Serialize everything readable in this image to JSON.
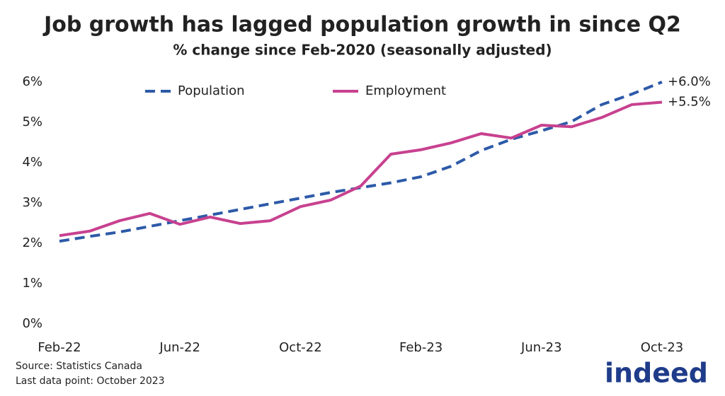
{
  "chart_data": {
    "type": "line",
    "title": "Job growth has lagged population growth in since Q2",
    "subtitle": "% change since Feb-2020 (seasonally adjusted)",
    "categories": [
      "Feb-22",
      null,
      null,
      null,
      "Jun-22",
      null,
      null,
      null,
      "Oct-22",
      null,
      null,
      null,
      "Feb-23",
      null,
      null,
      null,
      "Jun-23",
      null,
      null,
      null,
      "Oct-23"
    ],
    "series": [
      {
        "name": "Population",
        "color": "#2d5aa8",
        "dashed": true,
        "values": [
          2.05,
          2.17,
          2.28,
          2.42,
          2.56,
          2.7,
          2.84,
          2.98,
          3.12,
          3.26,
          3.38,
          3.5,
          3.65,
          3.91,
          4.3,
          4.58,
          4.79,
          5.02,
          5.44,
          5.7,
          6.0
        ],
        "value_labels": [
          null,
          null,
          null,
          null,
          null,
          null,
          null,
          null,
          null,
          null,
          null,
          null,
          null,
          null,
          null,
          null,
          null,
          null,
          null,
          null,
          "+6.0%"
        ]
      },
      {
        "name": "Employment",
        "color": "#c8418f",
        "dashed": false,
        "values": [
          2.19,
          2.3,
          2.56,
          2.74,
          2.47,
          2.65,
          2.49,
          2.56,
          2.91,
          3.07,
          3.42,
          4.21,
          4.32,
          4.49,
          4.72,
          4.61,
          4.93,
          4.89,
          5.12,
          5.44,
          5.5
        ],
        "value_labels": [
          null,
          null,
          null,
          null,
          null,
          null,
          null,
          null,
          null,
          null,
          null,
          null,
          null,
          null,
          null,
          null,
          null,
          null,
          null,
          null,
          "+5.5%"
        ]
      }
    ],
    "ylim": [
      0,
      6
    ],
    "yticks": [
      {
        "value": 0,
        "label": "0%"
      },
      {
        "value": 1,
        "label": "1%"
      },
      {
        "value": 2,
        "label": "2%"
      },
      {
        "value": 3,
        "label": "3%"
      },
      {
        "value": 4,
        "label": "4%"
      },
      {
        "value": 5,
        "label": "5%"
      },
      {
        "value": 6,
        "label": "6%"
      }
    ],
    "grid": false,
    "legend": "top",
    "source": "Source: Statistics Canada",
    "note": "Last data point: October 2023",
    "logo": "indeed"
  }
}
